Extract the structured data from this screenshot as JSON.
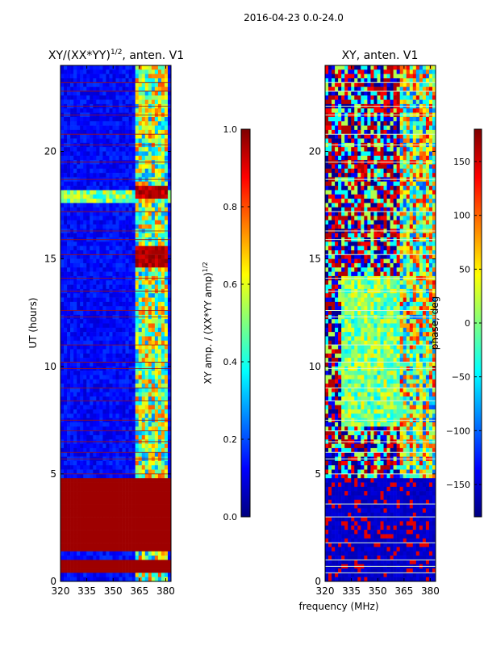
{
  "figure": {
    "suptitle": "2016-04-23 0.0-24.0",
    "shared_xlabel": "frequency (MHz)"
  },
  "colormap": {
    "name": "jet",
    "stops": [
      "#00007f",
      "#0000ff",
      "#007fff",
      "#00ffff",
      "#7fff7f",
      "#ffff00",
      "#ff7f00",
      "#ff0000",
      "#7f0000"
    ]
  },
  "chart_data": [
    {
      "type": "heatmap",
      "title_prefix": "XY/(XX*YY)",
      "title_exponent": "1/2",
      "title_suffix": ", anten. V1",
      "xlabel": "",
      "ylabel": "UT (hours)",
      "xlim": [
        320,
        383
      ],
      "ylim": [
        0,
        24
      ],
      "xticks": [
        "320",
        "335",
        "350",
        "365",
        "380"
      ],
      "xtick_values": [
        320,
        335,
        350,
        365,
        380
      ],
      "yticks": [
        "0",
        "5",
        "10",
        "15",
        "20"
      ],
      "ytick_values": [
        0,
        5,
        10,
        15,
        20
      ],
      "colorbar": {
        "label_prefix": "XY amp. / (XX*YY amp)",
        "label_exponent": "1/2",
        "range": [
          0.0,
          1.0
        ],
        "ticks": [
          "0.0",
          "0.2",
          "0.4",
          "0.6",
          "0.8",
          "1.0"
        ],
        "tick_values": [
          0.0,
          0.2,
          0.4,
          0.6,
          0.8,
          1.0
        ]
      }
    },
    {
      "type": "heatmap",
      "title": "XY, anten. V1",
      "xlabel": "frequency (MHz)",
      "ylabel": "",
      "xlim": [
        320,
        383
      ],
      "ylim": [
        0,
        24
      ],
      "xticks": [
        "320",
        "335",
        "350",
        "365",
        "380"
      ],
      "xtick_values": [
        320,
        335,
        350,
        365,
        380
      ],
      "yticks": [
        "0",
        "5",
        "10",
        "15",
        "20"
      ],
      "ytick_values": [
        0,
        5,
        10,
        15,
        20
      ],
      "colorbar": {
        "label": "phase, deg",
        "range": [
          -180,
          180
        ],
        "ticks": [
          "−150",
          "−100",
          "−50",
          "0",
          "50",
          "100",
          "150"
        ],
        "tick_values": [
          -150,
          -100,
          -50,
          0,
          50,
          100,
          150
        ]
      }
    }
  ]
}
